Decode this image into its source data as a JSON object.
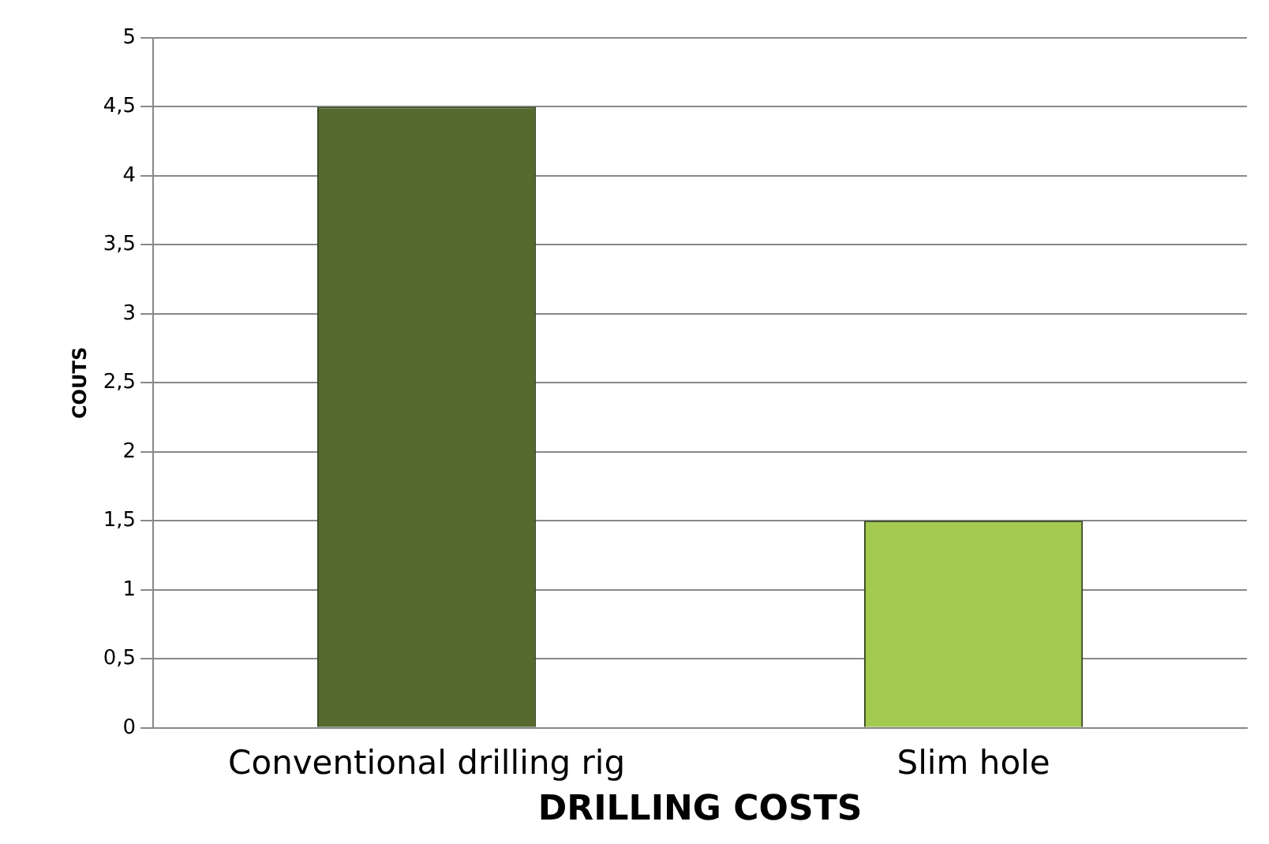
{
  "chart_data": {
    "type": "bar",
    "xlabel": "DRILLING COSTS",
    "ylabel": "COUTS",
    "categories": [
      "Conventional drilling rig",
      "Slim hole"
    ],
    "values": [
      4.5,
      1.5
    ],
    "colors": [
      "#56692f",
      "#a3c94f"
    ],
    "ylim": [
      0,
      5
    ],
    "yticks": [
      0,
      {
        "value": 0.5,
        "label": "0,5"
      },
      1,
      {
        "value": 1.5,
        "label": "1,5"
      },
      2,
      {
        "value": 2.5,
        "label": "2,5"
      },
      3,
      {
        "value": 3.5,
        "label": "3,5"
      },
      4,
      {
        "value": 4.5,
        "label": "4,5"
      },
      5
    ],
    "grid": "y",
    "legend": false
  }
}
